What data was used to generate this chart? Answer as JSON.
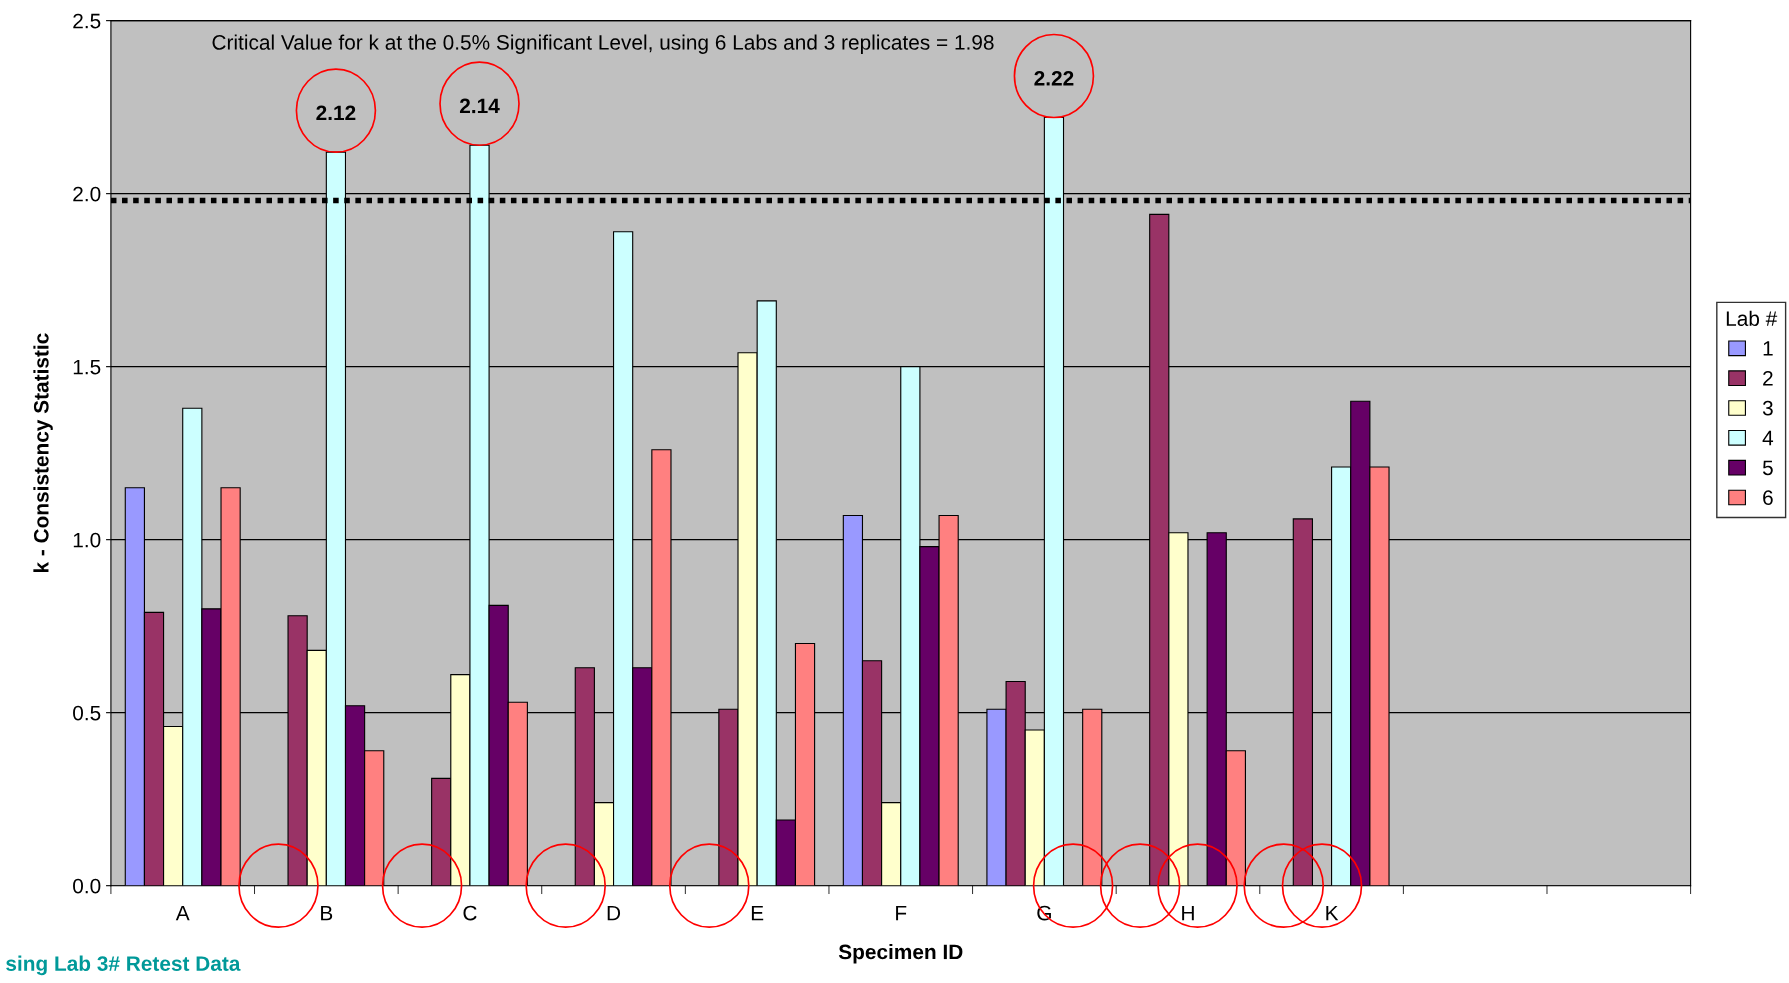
{
  "chart_data": {
    "type": "bar",
    "xlabel": "Specimen ID",
    "ylabel": "k - Consistency Statistic",
    "legend_title": "Lab #",
    "categories": [
      "A",
      "B",
      "C",
      "D",
      "E",
      "F",
      "G",
      "H",
      "K",
      null,
      null
    ],
    "series": [
      {
        "name": "1",
        "color": "#9999ff",
        "values": [
          1.15,
          0,
          0,
          0,
          0,
          1.07,
          0.51,
          0,
          0,
          null,
          null
        ]
      },
      {
        "name": "2",
        "color": "#993366",
        "values": [
          0.79,
          0.78,
          0.31,
          0.63,
          0.51,
          0.65,
          0.59,
          1.94,
          1.06,
          null,
          null
        ]
      },
      {
        "name": "3",
        "color": "#ffffcc",
        "values": [
          0.46,
          0.68,
          0.61,
          0.24,
          1.54,
          0.24,
          0.45,
          1.02,
          0,
          null,
          null
        ]
      },
      {
        "name": "4",
        "color": "#ccffff",
        "values": [
          1.38,
          2.12,
          2.14,
          1.89,
          1.69,
          1.5,
          2.22,
          0,
          1.21,
          null,
          null
        ]
      },
      {
        "name": "5",
        "color": "#660066",
        "values": [
          0.8,
          0.52,
          0.81,
          0.63,
          0.19,
          0.98,
          0,
          1.02,
          1.4,
          null,
          null
        ]
      },
      {
        "name": "6",
        "color": "#ff8080",
        "values": [
          1.15,
          0.39,
          0.53,
          1.26,
          0.7,
          1.07,
          0.51,
          0.39,
          1.21,
          null,
          null
        ]
      }
    ],
    "ylim": [
      0,
      2.5
    ],
    "yticks": [
      {
        "value": 0,
        "label": "0.0"
      },
      {
        "value": 0.5,
        "label": "0.5"
      },
      {
        "value": 1,
        "label": "1.0"
      },
      {
        "value": 1.5,
        "label": "1.5"
      },
      {
        "value": 2,
        "label": "2.0"
      },
      {
        "value": 2.5,
        "label": "2.5"
      }
    ],
    "grid": "y",
    "legend": "right",
    "ref_lines": [
      {
        "axis": "y",
        "value": 1.98,
        "color": "#000000",
        "line_style": "dotted"
      }
    ],
    "annotations": [
      "Critical Value for k at the 0.5% Significant Level, using 6 Labs and 3 replicates = 1.98",
      {
        "text": "2.12",
        "x": "B",
        "y": 2.12
      },
      {
        "text": "2.14",
        "x": "C",
        "y": 2.14
      },
      {
        "text": "2.22",
        "x": "G",
        "y": 2.22
      },
      "sing Lab 3# Retest Data"
    ]
  }
}
